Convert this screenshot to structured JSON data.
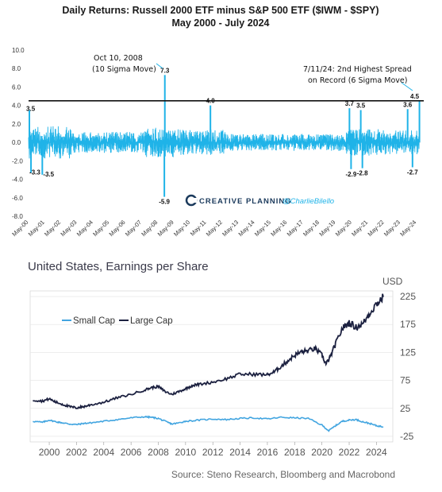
{
  "chart_data": [
    {
      "type": "line",
      "title": "Daily Returns: Russell 2000 ETF minus S&P 500 ETF ($IWM - $SPY)",
      "subtitle": "May 2000 - July 2024",
      "ylim": [
        -8.0,
        10.0
      ],
      "y_ticks": [
        "10.0",
        "8.0",
        "6.0",
        "4.0",
        "2.0",
        "0.0",
        "-2.0",
        "-4.0",
        "-6.0",
        "-8.0"
      ],
      "x_ticks": [
        "May-00",
        "May-01",
        "May-02",
        "May-03",
        "May-04",
        "May-05",
        "May-06",
        "May-07",
        "May-08",
        "May-09",
        "May-10",
        "May-11",
        "May-12",
        "May-13",
        "May-14",
        "May-15",
        "May-16",
        "May-17",
        "May-18",
        "May-19",
        "May-20",
        "May-21",
        "May-22",
        "May-23",
        "May-24"
      ],
      "reference_line": 4.5,
      "series_color": "#1fb3e8",
      "peaks": [
        {
          "x": 2000.4,
          "y": 3.5,
          "label": "3.5"
        },
        {
          "x": 2000.5,
          "y": -3.3,
          "label": "-3.3"
        },
        {
          "x": 2001.2,
          "y": -3.5,
          "label": "-3.5"
        },
        {
          "x": 2008.78,
          "y": 7.3,
          "label": "7.3"
        },
        {
          "x": 2008.75,
          "y": -5.9,
          "label": "-5.9"
        },
        {
          "x": 2011.6,
          "y": 4.0,
          "label": "4.0"
        },
        {
          "x": 2020.2,
          "y": 3.7,
          "label": "3.7"
        },
        {
          "x": 2020.3,
          "y": -2.9,
          "label": "-2.9"
        },
        {
          "x": 2020.9,
          "y": 3.5,
          "label": "3.5"
        },
        {
          "x": 2021.0,
          "y": -2.8,
          "label": "-2.8"
        },
        {
          "x": 2023.8,
          "y": 3.6,
          "label": "3.6"
        },
        {
          "x": 2024.1,
          "y": -2.7,
          "label": "-2.7"
        },
        {
          "x": 2024.53,
          "y": 4.5,
          "label": "4.5"
        }
      ],
      "annotations": [
        {
          "line1": "Oct 10, 2008",
          "line2": "(10 Sigma Move)"
        },
        {
          "line1": "7/11/24: 2nd Highest Spread",
          "line2": "on Record (6 Sigma Move)"
        }
      ],
      "watermark": {
        "brand": "CREATIVE PLANNING",
        "handle": "@CharlieBilello"
      }
    },
    {
      "type": "line",
      "title": "United States, Earnings per Share",
      "unit_label": "USD",
      "source": "Source: Steno Research, Bloomberg and Macrobond",
      "ylim": [
        -35,
        235
      ],
      "y_ticks": [
        225,
        175,
        125,
        75,
        25,
        -25
      ],
      "x_ticks": [
        2000,
        2002,
        2004,
        2006,
        2008,
        2010,
        2012,
        2014,
        2016,
        2018,
        2020,
        2022,
        2024
      ],
      "xlim": [
        1998.6,
        2025.2
      ],
      "series": [
        {
          "name": "Small Cap",
          "color": "#42a5e0",
          "x": [
            1998.8,
            1999.5,
            2000.0,
            2000.5,
            2001.0,
            2001.5,
            2002.0,
            2002.5,
            2003.0,
            2004.0,
            2005.0,
            2006.0,
            2007.0,
            2007.5,
            2008.0,
            2008.5,
            2009.0,
            2009.5,
            2010.0,
            2011.0,
            2012.0,
            2013.0,
            2014.0,
            2015.0,
            2016.0,
            2017.0,
            2018.0,
            2019.0,
            2020.0,
            2020.5,
            2021.0,
            2021.5,
            2022.0,
            2022.5,
            2023.0,
            2023.5,
            2024.0,
            2024.5
          ],
          "values": [
            2,
            0,
            4,
            1,
            -1,
            -3,
            -4,
            -2,
            -1,
            2,
            5,
            8,
            10,
            9,
            7,
            2,
            -3,
            -1,
            2,
            4,
            6,
            5,
            7,
            8,
            6,
            9,
            8,
            7,
            -5,
            -15,
            -6,
            2,
            4,
            5,
            1,
            -2,
            -6,
            -8
          ]
        },
        {
          "name": "Large Cap",
          "color": "#1c2140",
          "x": [
            1998.8,
            1999.5,
            2000.0,
            2000.5,
            2001.0,
            2001.5,
            2002.0,
            2002.5,
            2003.0,
            2004.0,
            2005.0,
            2006.0,
            2007.0,
            2007.5,
            2008.0,
            2008.5,
            2009.0,
            2009.5,
            2010.0,
            2010.5,
            2011.0,
            2012.0,
            2013.0,
            2014.0,
            2015.0,
            2016.0,
            2016.5,
            2017.0,
            2017.5,
            2018.0,
            2018.5,
            2019.0,
            2019.5,
            2020.0,
            2020.3,
            2020.6,
            2021.0,
            2021.5,
            2022.0,
            2022.5,
            2023.0,
            2023.5,
            2024.0,
            2024.5
          ],
          "values": [
            40,
            38,
            42,
            36,
            32,
            28,
            26,
            28,
            31,
            36,
            44,
            50,
            58,
            62,
            64,
            55,
            50,
            55,
            60,
            66,
            68,
            72,
            78,
            86,
            86,
            85,
            90,
            100,
            110,
            120,
            126,
            128,
            132,
            120,
            104,
            116,
            140,
            168,
            178,
            170,
            176,
            195,
            212,
            224
          ]
        }
      ]
    }
  ]
}
